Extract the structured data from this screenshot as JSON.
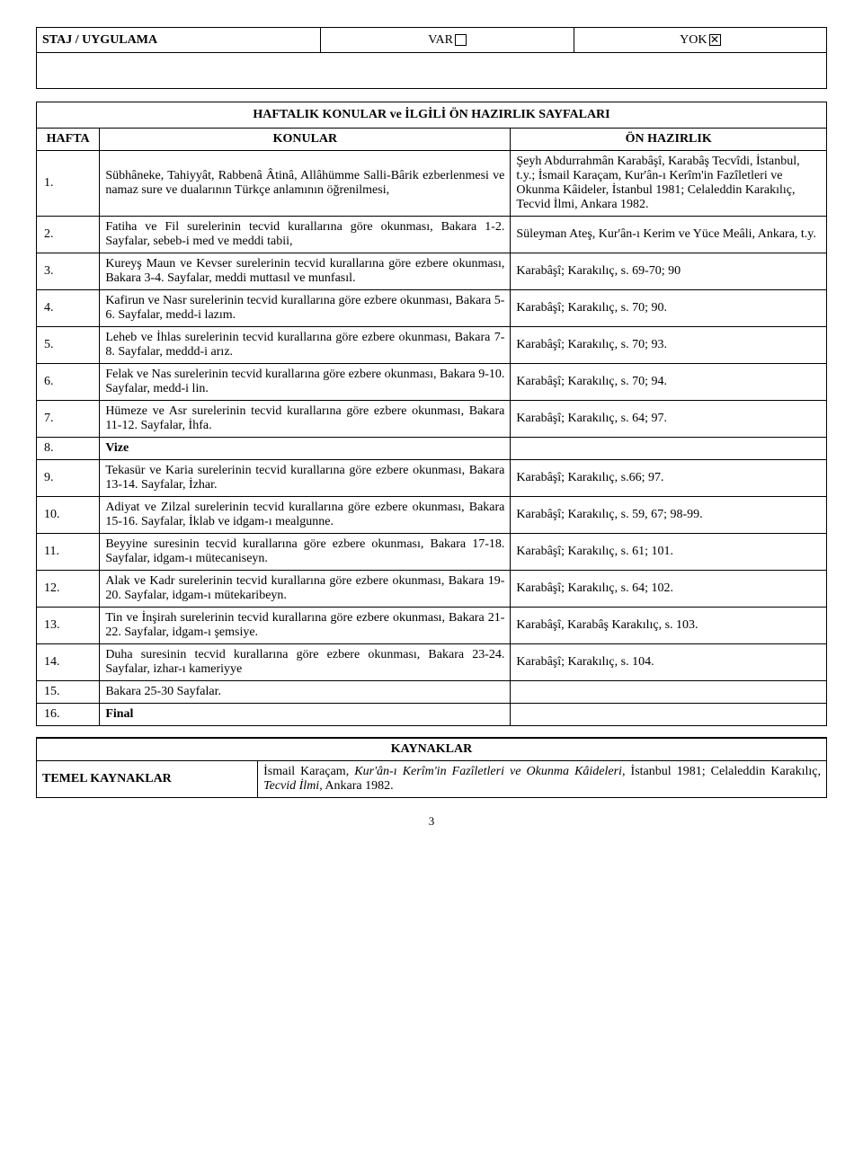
{
  "staj": {
    "label": "STAJ / UYGULAMA",
    "var_label": "VAR",
    "var_checked": false,
    "yok_label": "YOK",
    "yok_checked": true
  },
  "caption": "HAFTALIK KONULAR ve İLGİLİ ÖN HAZIRLIK SAYFALARI",
  "headers": {
    "hafta": "HAFTA",
    "konular": "KONULAR",
    "onhaz": "ÖN HAZIRLIK"
  },
  "rows": [
    {
      "num": "1.",
      "topic": "Sübhâneke, Tahiyyât, Rabbenâ Âtinâ, Allâhümme Salli-Bârik ezberlenmesi ve namaz sure ve dualarının Türkçe anlamının öğrenilmesi,",
      "prep": "Şeyh Abdurrahmân Karabâşî, Karabâş Tecvîdi, İstanbul, t.y.; İsmail Karaçam, Kur'ân-ı Kerîm'in Fazîletleri ve Okunma Kâideler, İstanbul 1981; Celaleddin Karakılıç, Tecvid İlmi, Ankara 1982."
    },
    {
      "num": "2.",
      "topic": "Fatiha ve Fil surelerinin tecvid kurallarına göre okunması, Bakara 1-2. Sayfalar, sebeb-i med ve meddi tabii,",
      "prep": "Süleyman Ateş, Kur'ân-ı Kerim ve Yüce Meâli, Ankara, t.y."
    },
    {
      "num": "3.",
      "topic": "Kureyş Maun ve Kevser surelerinin tecvid kurallarına göre ezbere okunması, Bakara 3-4. Sayfalar, meddi muttasıl ve munfasıl.",
      "prep": "Karabâşî; Karakılıç, s. 69-70; 90"
    },
    {
      "num": "4.",
      "topic": "Kafirun ve Nasr surelerinin tecvid kurallarına göre ezbere okunması, Bakara 5-6. Sayfalar, medd-i lazım.",
      "prep": "Karabâşî; Karakılıç, s. 70; 90."
    },
    {
      "num": "5.",
      "topic": "Leheb ve İhlas surelerinin tecvid kurallarına göre ezbere okunması, Bakara 7-8. Sayfalar, meddd-i arız.",
      "prep": "Karabâşî; Karakılıç, s. 70; 93."
    },
    {
      "num": "6.",
      "topic": "Felak ve Nas surelerinin tecvid kurallarına göre ezbere okunması, Bakara 9-10. Sayfalar, medd-i lin.",
      "prep": "Karabâşî; Karakılıç, s. 70; 94."
    },
    {
      "num": "7.",
      "topic": "Hümeze ve Asr surelerinin tecvid kurallarına göre ezbere okunması, Bakara 11-12. Sayfalar, İhfa.",
      "prep": "Karabâşî; Karakılıç, s. 64; 97."
    },
    {
      "num": "8.",
      "topic": "Vize",
      "prep": "",
      "bold": true
    },
    {
      "num": "9.",
      "topic": "Tekasür ve Karia surelerinin tecvid kurallarına göre ezbere okunması, Bakara 13-14. Sayfalar, İzhar.",
      "prep": "Karabâşî; Karakılıç, s.66; 97."
    },
    {
      "num": "10.",
      "topic": "Adiyat ve Zilzal surelerinin tecvid kurallarına göre ezbere okunması, Bakara 15-16. Sayfalar, İklab ve idgam-ı mealgunne.",
      "prep": "Karabâşî; Karakılıç, s. 59, 67; 98-99."
    },
    {
      "num": "11.",
      "topic": "Beyyine suresinin tecvid kurallarına göre ezbere okunması, Bakara 17-18. Sayfalar, idgam-ı mütecaniseyn.",
      "prep": "Karabâşî; Karakılıç, s. 61; 101."
    },
    {
      "num": "12.",
      "topic": "Alak ve Kadr surelerinin tecvid kurallarına göre ezbere okunması, Bakara 19-20. Sayfalar, idgam-ı mütekaribeyn.",
      "prep": "Karabâşî; Karakılıç, s. 64; 102."
    },
    {
      "num": "13.",
      "topic": "Tin ve İnşirah surelerinin tecvid kurallarına göre ezbere okunması, Bakara 21-22. Sayfalar, idgam-ı şemsiye.",
      "prep": "Karabâşî, Karabâş Karakılıç, s. 103."
    },
    {
      "num": "14.",
      "topic": "Duha suresinin tecvid kurallarına göre ezbere okunması, Bakara 23-24. Sayfalar, izhar-ı kameriyye",
      "prep": "Karabâşî; Karakılıç, s. 104."
    },
    {
      "num": "15.",
      "topic": "Bakara 25-30 Sayfalar.",
      "prep": ""
    },
    {
      "num": "16.",
      "topic": "Final",
      "prep": "",
      "bold": true
    }
  ],
  "kaynak": {
    "caption": "KAYNAKLAR",
    "label": "TEMEL KAYNAKLAR",
    "content_pre": "İsmail Karaçam, ",
    "content_it1": "Kur'ân-ı Kerîm'in Fazîletleri ve Okunma Kâideleri",
    "content_mid": ", İstanbul 1981; Celaleddin Karakılıç, ",
    "content_it2": "Tecvid İlmi",
    "content_post": ", Ankara 1982."
  },
  "page_number": "3"
}
